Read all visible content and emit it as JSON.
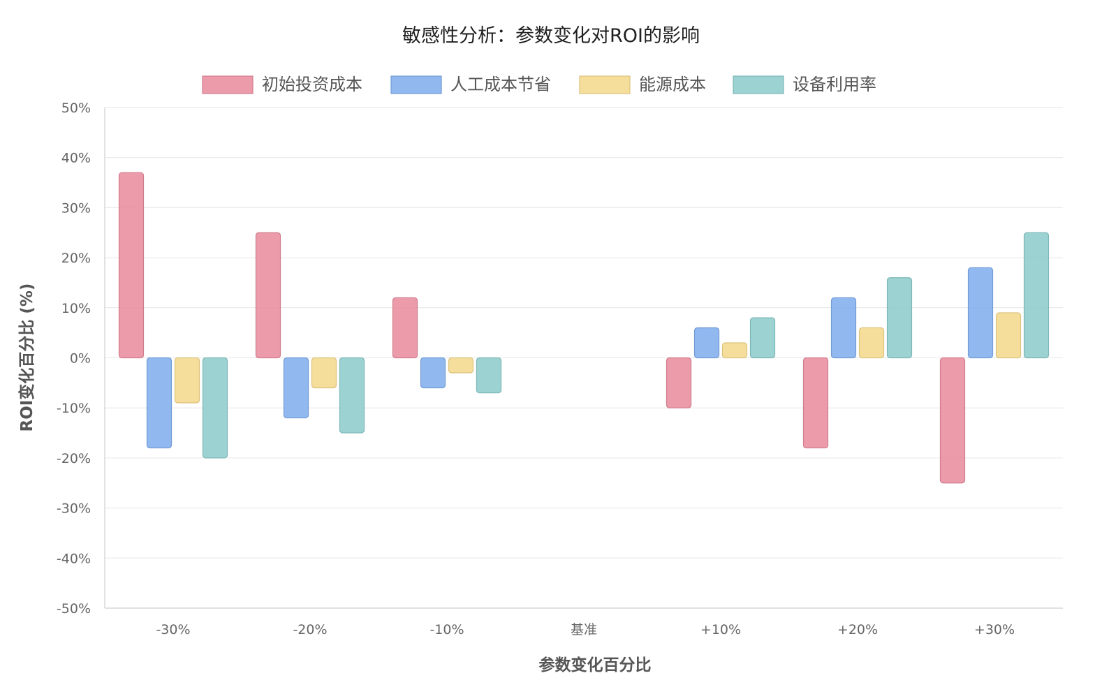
{
  "chart_data": {
    "type": "bar",
    "title": "敏感性分析：参数变化对ROI的影响",
    "xlabel": "参数变化百分比",
    "ylabel": "ROI变化百分比 (%)",
    "categories": [
      "-30%",
      "-20%",
      "-10%",
      "基准",
      "+10%",
      "+20%",
      "+30%"
    ],
    "ylim": [
      -50,
      50
    ],
    "y_ticks": [
      "50%",
      "40%",
      "30%",
      "20%",
      "10%",
      "0%",
      "-10%",
      "-20%",
      "-30%",
      "-40%",
      "-50%"
    ],
    "grid": true,
    "legend_position": "top",
    "series": [
      {
        "name": "初始投资成本",
        "color": "#e88a9b",
        "values": [
          37,
          25,
          12,
          0,
          -10,
          -18,
          -25
        ]
      },
      {
        "name": "人工成本节省",
        "color": "#7eacec",
        "values": [
          -18,
          -12,
          -6,
          0,
          6,
          12,
          18
        ]
      },
      {
        "name": "能源成本",
        "color": "#f3d88a",
        "values": [
          -9,
          -6,
          -3,
          0,
          3,
          6,
          9
        ]
      },
      {
        "name": "设备利用率",
        "color": "#8bcaca",
        "values": [
          -20,
          -15,
          -7,
          0,
          8,
          16,
          25
        ]
      }
    ]
  }
}
